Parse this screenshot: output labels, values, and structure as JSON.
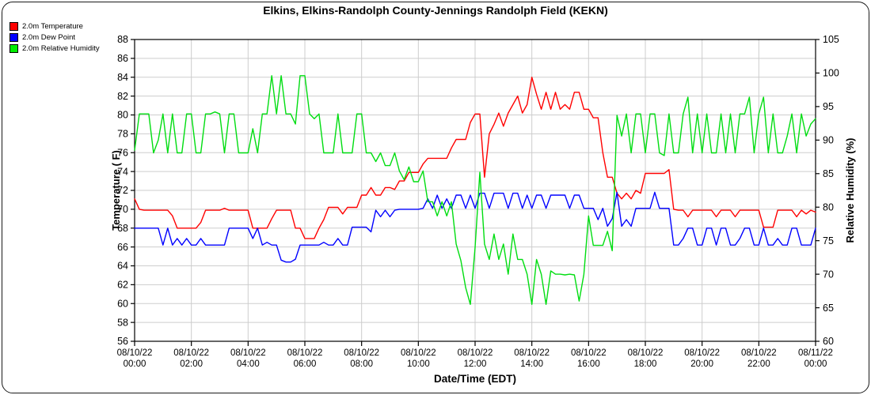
{
  "title": "Elkins, Elkins-Randolph County-Jennings Randolph Field (KEKN)",
  "legend": {
    "items": [
      {
        "label": "2.0m Temperature",
        "color": "#ff0000"
      },
      {
        "label": "2.0m Dew Point",
        "color": "#0000ff"
      },
      {
        "label": "2.0m Relative Humidity",
        "color": "#00ee00"
      }
    ]
  },
  "colors": {
    "grid": "#cdcdcd",
    "axis": "#000000",
    "background": "#ffffff",
    "temperature": "#ff0000",
    "dew_point": "#0000ff",
    "relative_humidity": "#00dd11"
  },
  "chart_data": {
    "type": "line",
    "title": "Elkins, Elkins-Randolph County-Jennings Randolph Field (KEKN)",
    "xlabel": "Date/Time (EDT)",
    "ylabel_left": "Temperature ( F)",
    "ylabel_right": "Relative Humidity (%)",
    "grid": true,
    "legend_position": "top-left",
    "x_hours_range": [
      0,
      24
    ],
    "x_tick_hours": [
      0,
      2,
      4,
      6,
      8,
      10,
      12,
      14,
      16,
      18,
      20,
      22,
      24
    ],
    "x_tick_labels": [
      [
        "08/10/22",
        "00:00"
      ],
      [
        "08/10/22",
        "02:00"
      ],
      [
        "08/10/22",
        "04:00"
      ],
      [
        "08/10/22",
        "06:00"
      ],
      [
        "08/10/22",
        "08:00"
      ],
      [
        "08/10/22",
        "10:00"
      ],
      [
        "08/10/22",
        "12:00"
      ],
      [
        "08/10/22",
        "14:00"
      ],
      [
        "08/10/22",
        "16:00"
      ],
      [
        "08/10/22",
        "18:00"
      ],
      [
        "08/10/22",
        "20:00"
      ],
      [
        "08/10/22",
        "22:00"
      ],
      [
        "08/11/22",
        "00:00"
      ]
    ],
    "y_left": {
      "min": 56,
      "max": 88,
      "step": 2
    },
    "y_right": {
      "min": 60,
      "max": 105,
      "step": 5
    },
    "sample_interval_minutes": 10,
    "series": [
      {
        "name": "2.0m Temperature",
        "axis": "left",
        "color": "#ff0000",
        "values": [
          71.1,
          70.0,
          69.9,
          69.9,
          69.9,
          69.9,
          69.9,
          69.9,
          69.3,
          68.0,
          68.0,
          68.0,
          68.0,
          68.0,
          68.6,
          69.9,
          69.9,
          69.9,
          69.9,
          70.1,
          69.9,
          69.9,
          69.9,
          69.9,
          69.9,
          68.0,
          68.0,
          68.0,
          68.0,
          69.0,
          69.9,
          69.9,
          69.9,
          69.9,
          68.0,
          68.0,
          66.9,
          66.9,
          66.9,
          68.0,
          68.9,
          70.2,
          70.2,
          70.2,
          69.5,
          70.2,
          70.2,
          70.2,
          71.5,
          71.5,
          72.3,
          71.5,
          71.5,
          72.3,
          72.3,
          72.1,
          73.0,
          73.0,
          73.9,
          73.9,
          73.9,
          74.8,
          75.4,
          75.4,
          75.4,
          75.4,
          75.4,
          76.5,
          77.4,
          77.4,
          77.4,
          79.2,
          80.1,
          80.1,
          73.4,
          78.0,
          79.0,
          80.2,
          78.8,
          80.2,
          81.1,
          82.0,
          80.2,
          81.1,
          84.0,
          82.2,
          80.6,
          82.4,
          80.6,
          82.4,
          80.6,
          81.1,
          80.6,
          82.4,
          82.4,
          80.6,
          80.6,
          79.7,
          79.7,
          76.0,
          73.4,
          73.4,
          71.7,
          71.1,
          71.7,
          71.1,
          72.0,
          71.7,
          73.8,
          73.8,
          73.8,
          73.8,
          73.8,
          74.2,
          70.0,
          69.9,
          69.9,
          69.2,
          69.9,
          69.9,
          69.9,
          69.9,
          69.9,
          69.2,
          69.9,
          69.9,
          69.9,
          69.2,
          69.9,
          69.9,
          69.9,
          69.9,
          69.9,
          68.1,
          68.1,
          68.1,
          69.9,
          69.9,
          69.9,
          69.9,
          69.2,
          69.9,
          69.5,
          69.9,
          69.7
        ]
      },
      {
        "name": "2.0m Dew Point",
        "axis": "left",
        "color": "#0000ff",
        "values": [
          68.0,
          68.0,
          68.0,
          68.0,
          68.0,
          68.0,
          66.2,
          68.0,
          66.2,
          66.9,
          66.2,
          66.9,
          66.2,
          66.2,
          66.9,
          66.2,
          66.2,
          66.2,
          66.2,
          66.2,
          68.0,
          68.0,
          68.0,
          68.0,
          68.0,
          66.9,
          68.0,
          66.2,
          66.5,
          66.2,
          66.2,
          64.6,
          64.4,
          64.4,
          64.7,
          66.2,
          66.2,
          66.2,
          66.2,
          66.2,
          66.5,
          66.2,
          66.2,
          66.9,
          66.2,
          66.2,
          68.1,
          68.1,
          68.1,
          68.1,
          67.6,
          69.9,
          69.2,
          69.9,
          69.2,
          69.9,
          70.0,
          70.0,
          70.0,
          70.0,
          70.0,
          70.1,
          71.1,
          70.1,
          71.5,
          70.1,
          71.1,
          70.1,
          71.5,
          71.5,
          70.1,
          71.5,
          70.1,
          71.7,
          71.7,
          70.1,
          71.7,
          71.7,
          71.7,
          70.1,
          71.7,
          71.7,
          70.1,
          71.5,
          70.1,
          71.5,
          71.5,
          70.1,
          71.5,
          71.5,
          71.5,
          71.5,
          70.1,
          71.5,
          71.5,
          70.1,
          70.1,
          70.1,
          68.9,
          70.1,
          68.2,
          69.0,
          71.8,
          68.2,
          68.9,
          68.2,
          70.1,
          70.1,
          70.1,
          70.1,
          71.8,
          70.1,
          70.1,
          70.1,
          66.2,
          66.2,
          66.9,
          68.0,
          68.0,
          66.2,
          66.2,
          68.0,
          68.0,
          66.2,
          68.0,
          68.0,
          66.2,
          66.2,
          66.9,
          68.0,
          68.0,
          66.2,
          66.2,
          68.0,
          66.2,
          66.2,
          66.9,
          66.2,
          66.2,
          68.0,
          68.0,
          66.2,
          66.2,
          66.2,
          68.0
        ]
      },
      {
        "name": "2.0m Relative Humidity",
        "axis": "right",
        "color": "#00dd11",
        "values": [
          88.5,
          93.9,
          93.9,
          93.9,
          88.1,
          90.0,
          93.9,
          88.1,
          93.9,
          88.1,
          88.1,
          93.9,
          93.9,
          88.1,
          88.1,
          93.9,
          93.9,
          94.2,
          93.9,
          88.1,
          93.9,
          93.9,
          88.1,
          88.1,
          88.1,
          91.7,
          88.1,
          93.9,
          93.9,
          99.6,
          93.9,
          99.6,
          93.9,
          93.9,
          92.4,
          99.6,
          99.6,
          93.9,
          93.2,
          93.9,
          88.1,
          88.1,
          88.1,
          93.9,
          88.1,
          88.1,
          88.1,
          93.9,
          93.9,
          88.1,
          88.1,
          86.8,
          88.1,
          86.2,
          86.2,
          88.1,
          85.4,
          84.1,
          86.0,
          83.8,
          83.8,
          85.4,
          80.8,
          80.8,
          78.7,
          80.8,
          78.7,
          80.8,
          74.5,
          72.0,
          68.0,
          65.5,
          74.0,
          85.2,
          74.5,
          72.2,
          76.0,
          72.2,
          74.5,
          70.0,
          76.0,
          72.2,
          72.2,
          70.0,
          65.5,
          72.2,
          70.0,
          65.5,
          70.5,
          70.0,
          70.0,
          69.9,
          70.0,
          69.9,
          66.0,
          70.0,
          78.7,
          74.3,
          74.3,
          74.3,
          76.4,
          73.5,
          93.7,
          90.6,
          93.9,
          88.1,
          93.9,
          93.9,
          88.1,
          93.9,
          93.9,
          88.1,
          87.7,
          93.9,
          88.1,
          88.1,
          93.9,
          96.4,
          88.1,
          93.9,
          88.1,
          93.9,
          88.1,
          88.1,
          93.9,
          88.1,
          93.9,
          88.1,
          93.9,
          93.9,
          96.4,
          88.1,
          93.9,
          96.4,
          88.1,
          93.9,
          88.1,
          88.1,
          90.6,
          93.9,
          88.1,
          93.9,
          90.6,
          92.4,
          93.2
        ]
      }
    ]
  }
}
